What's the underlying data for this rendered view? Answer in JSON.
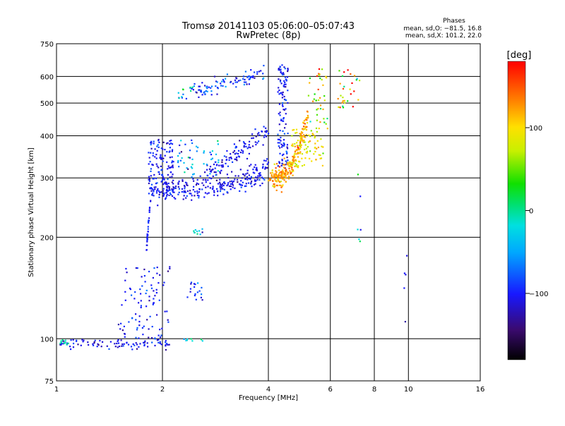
{
  "chart_data": {
    "type": "scatter",
    "title": "Tromsø 20141103 05:06:00–05:07:43",
    "subtitle": "RwPretec (8p)",
    "xlabel": "Frequency [MHz]",
    "ylabel": "Stationary phase Virtual Height [km]",
    "x_scale": "log",
    "y_scale": "log",
    "xlim": [
      1,
      16
    ],
    "ylim": [
      75,
      750
    ],
    "x_ticks": [
      1,
      2,
      4,
      6,
      8,
      10,
      16
    ],
    "y_ticks": [
      75,
      100,
      200,
      300,
      400,
      500,
      600,
      750
    ],
    "x_grid": [
      2,
      4,
      6,
      8,
      10
    ],
    "y_grid": [
      100,
      200,
      300,
      400,
      500,
      600
    ],
    "phase_box": {
      "title": "Phases",
      "line_o": "mean, sd,O: −81.5, 16.8",
      "line_x": "mean, sd,X: 101.2, 22.0"
    },
    "colorbar": {
      "label": "[deg]",
      "range": [
        -180,
        180
      ],
      "ticks": [
        {
          "value": 100,
          "label": "100"
        },
        {
          "value": 0,
          "label": "0"
        },
        {
          "value": -100,
          "label": "−100"
        }
      ]
    },
    "clusters": [
      {
        "kind": "line",
        "f_from": 1.02,
        "f_to": 2.1,
        "h_from": 97,
        "h_to": 97,
        "jitter_h": 0.018,
        "phase": -105,
        "phase_sd": 14,
        "count": 90
      },
      {
        "kind": "line",
        "f_from": 1.02,
        "f_to": 1.08,
        "h_from": 97,
        "h_to": 97,
        "jitter_h": 0.01,
        "phase": -5,
        "phase_sd": 6,
        "count": 10
      },
      {
        "kind": "box",
        "f_from": 1.5,
        "f_to": 2.1,
        "h_from": 100,
        "h_to": 165,
        "phase": -100,
        "phase_sd": 15,
        "count": 90
      },
      {
        "kind": "box",
        "f_from": 2.35,
        "f_to": 2.6,
        "h_from": 130,
        "h_to": 150,
        "phase": -95,
        "phase_sd": 18,
        "count": 18
      },
      {
        "kind": "box",
        "f_from": 2.3,
        "f_to": 2.6,
        "h_from": 97,
        "h_to": 100,
        "phase": -20,
        "phase_sd": 25,
        "count": 8
      },
      {
        "kind": "line",
        "f_from": 1.8,
        "f_to": 1.85,
        "h_from": 185,
        "h_to": 260,
        "jitter_h": 0.02,
        "phase": -100,
        "phase_sd": 10,
        "count": 30
      },
      {
        "kind": "box",
        "f_from": 2.4,
        "f_to": 2.62,
        "h_from": 203,
        "h_to": 212,
        "phase": -30,
        "phase_sd": 30,
        "count": 10
      },
      {
        "kind": "box",
        "f_from": 1.82,
        "f_to": 2.15,
        "h_from": 265,
        "h_to": 390,
        "phase": -100,
        "phase_sd": 14,
        "count": 140
      },
      {
        "kind": "curve",
        "f_from": 1.85,
        "f_to": 3.9,
        "h_from": 268,
        "h_to": 305,
        "jitter_h": 0.025,
        "phase": -100,
        "phase_sd": 12,
        "count": 130
      },
      {
        "kind": "curve",
        "f_from": 2.0,
        "f_to": 4.0,
        "h_from": 282,
        "h_to": 330,
        "jitter_h": 0.03,
        "phase": -110,
        "phase_sd": 12,
        "count": 120
      },
      {
        "kind": "line",
        "f_from": 2.6,
        "f_to": 4.0,
        "h_from": 300,
        "h_to": 415,
        "jitter_h": 0.035,
        "phase": -105,
        "phase_sd": 14,
        "count": 110
      },
      {
        "kind": "box",
        "f_from": 2.2,
        "f_to": 2.9,
        "h_from": 300,
        "h_to": 390,
        "phase": -60,
        "phase_sd": 35,
        "count": 50
      },
      {
        "kind": "line",
        "f_from": 2.4,
        "f_to": 3.9,
        "h_from": 540,
        "h_to": 620,
        "jitter_h": 0.025,
        "phase": -90,
        "phase_sd": 20,
        "count": 90
      },
      {
        "kind": "box",
        "f_from": 2.2,
        "f_to": 2.7,
        "h_from": 510,
        "h_to": 560,
        "phase": -30,
        "phase_sd": 40,
        "count": 14
      },
      {
        "kind": "box",
        "f_from": 4.25,
        "f_to": 4.55,
        "h_from": 320,
        "h_to": 650,
        "phase": -100,
        "phase_sd": 14,
        "count": 120
      },
      {
        "kind": "curve",
        "f_from": 4.1,
        "f_to": 5.2,
        "h_from": 305,
        "h_to": 490,
        "jitter_h": 0.04,
        "phase": 120,
        "phase_sd": 22,
        "count": 200
      },
      {
        "kind": "line",
        "f_from": 4.0,
        "f_to": 4.6,
        "h_from": 300,
        "h_to": 310,
        "jitter_h": 0.02,
        "phase": 125,
        "phase_sd": 10,
        "count": 30
      },
      {
        "kind": "box",
        "f_from": 4.6,
        "f_to": 5.8,
        "h_from": 320,
        "h_to": 420,
        "phase": 90,
        "phase_sd": 18,
        "count": 80
      },
      {
        "kind": "box",
        "f_from": 5.2,
        "f_to": 5.9,
        "h_from": 420,
        "h_to": 640,
        "phase": 80,
        "phase_sd": 50,
        "count": 40
      },
      {
        "kind": "box",
        "f_from": 6.3,
        "f_to": 7.3,
        "h_from": 470,
        "h_to": 630,
        "phase": 90,
        "phase_sd": 70,
        "count": 30
      },
      {
        "kind": "box",
        "f_from": 6.9,
        "f_to": 7.4,
        "h_from": 140,
        "h_to": 380,
        "phase": -30,
        "phase_sd": 60,
        "count": 6
      },
      {
        "kind": "box",
        "f_from": 9.7,
        "f_to": 9.9,
        "h_from": 110,
        "h_to": 185,
        "phase": -110,
        "phase_sd": 10,
        "count": 5
      }
    ]
  }
}
